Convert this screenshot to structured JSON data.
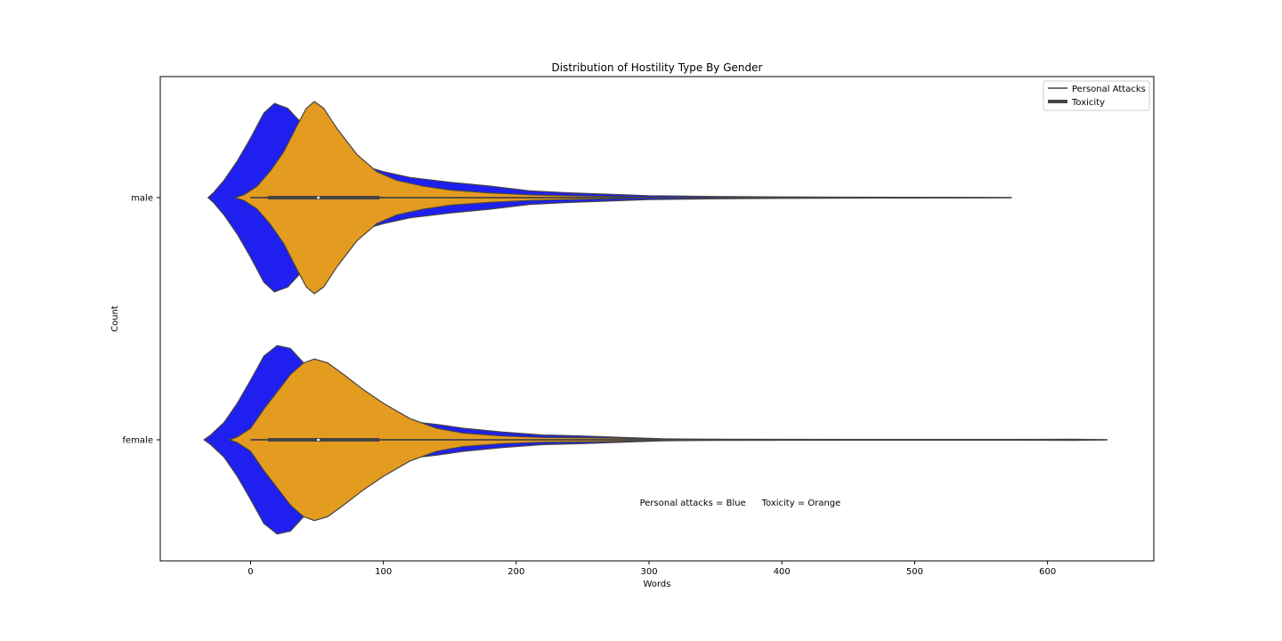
{
  "chart_data": {
    "type": "violin",
    "orientation": "horizontal",
    "title": "Distribution of Hostility Type By Gender",
    "xlabel": "Words",
    "ylabel": "Count",
    "categories": [
      "male",
      "female"
    ],
    "xlim": [
      -68,
      680
    ],
    "xticks": [
      0,
      100,
      200,
      300,
      400,
      500,
      600
    ],
    "legend": {
      "position": "top-right",
      "entries": [
        {
          "label": "Personal Attacks",
          "color": "#444444",
          "style": "thin"
        },
        {
          "label": "Toxicity",
          "color": "#444444",
          "style": "thick"
        }
      ]
    },
    "annotation": {
      "left": "Personal attacks = Blue",
      "right": "Toxicity = Orange",
      "x": 293,
      "y_category": "female",
      "y_offset": 0.58
    },
    "series": [
      {
        "name": "Personal attacks",
        "color": "#1f1ff0",
        "violins": [
          {
            "category": "male",
            "min": 0,
            "q1": 13,
            "median": 42,
            "q3": 97,
            "max": 573,
            "density": [
              [
                -32,
                0
              ],
              [
                -28,
                0.05
              ],
              [
                -20,
                0.18
              ],
              [
                -10,
                0.38
              ],
              [
                0,
                0.62
              ],
              [
                10,
                0.88
              ],
              [
                18,
                0.98
              ],
              [
                28,
                0.93
              ],
              [
                40,
                0.75
              ],
              [
                55,
                0.47
              ],
              [
                70,
                0.36
              ],
              [
                85,
                0.33
              ],
              [
                100,
                0.27
              ],
              [
                120,
                0.21
              ],
              [
                150,
                0.16
              ],
              [
                180,
                0.12
              ],
              [
                210,
                0.07
              ],
              [
                240,
                0.05
              ],
              [
                270,
                0.035
              ],
              [
                300,
                0.02
              ],
              [
                350,
                0.012
              ],
              [
                400,
                0.007
              ],
              [
                450,
                0.005
              ],
              [
                500,
                0.004
              ],
              [
                540,
                0.003
              ],
              [
                573,
                0
              ]
            ]
          },
          {
            "category": "female",
            "min": 0,
            "q1": 13,
            "median": 43,
            "q3": 97,
            "max": 645,
            "density": [
              [
                -35,
                0
              ],
              [
                -30,
                0.05
              ],
              [
                -20,
                0.18
              ],
              [
                -10,
                0.38
              ],
              [
                0,
                0.62
              ],
              [
                10,
                0.87
              ],
              [
                20,
                0.98
              ],
              [
                30,
                0.95
              ],
              [
                40,
                0.8
              ],
              [
                55,
                0.52
              ],
              [
                75,
                0.33
              ],
              [
                100,
                0.24
              ],
              [
                120,
                0.19
              ],
              [
                140,
                0.16
              ],
              [
                160,
                0.12
              ],
              [
                190,
                0.08
              ],
              [
                220,
                0.05
              ],
              [
                250,
                0.04
              ],
              [
                280,
                0.025
              ],
              [
                310,
                0.01
              ],
              [
                350,
                0.006
              ],
              [
                400,
                0.005
              ],
              [
                450,
                0.004
              ],
              [
                500,
                0.004
              ],
              [
                550,
                0.004
              ],
              [
                600,
                0.005
              ],
              [
                620,
                0.006
              ],
              [
                645,
                0
              ]
            ]
          }
        ]
      },
      {
        "name": "Toxicity",
        "color": "#e39b20",
        "violins": [
          {
            "category": "male",
            "min": 0,
            "q1": 38,
            "median": 51,
            "q3": 70,
            "max": 300,
            "density": [
              [
                -12,
                0
              ],
              [
                -5,
                0.03
              ],
              [
                5,
                0.12
              ],
              [
                15,
                0.28
              ],
              [
                25,
                0.48
              ],
              [
                35,
                0.75
              ],
              [
                42,
                0.93
              ],
              [
                48,
                1.0
              ],
              [
                55,
                0.93
              ],
              [
                65,
                0.72
              ],
              [
                80,
                0.45
              ],
              [
                95,
                0.27
              ],
              [
                110,
                0.18
              ],
              [
                130,
                0.12
              ],
              [
                150,
                0.08
              ],
              [
                180,
                0.05
              ],
              [
                210,
                0.03
              ],
              [
                240,
                0.02
              ],
              [
                270,
                0.012
              ],
              [
                300,
                0
              ]
            ]
          },
          {
            "category": "female",
            "min": 0,
            "q1": 33,
            "median": 51,
            "q3": 70,
            "max": 340,
            "density": [
              [
                -16,
                0
              ],
              [
                -10,
                0.03
              ],
              [
                0,
                0.12
              ],
              [
                10,
                0.32
              ],
              [
                20,
                0.5
              ],
              [
                30,
                0.68
              ],
              [
                40,
                0.8
              ],
              [
                48,
                0.84
              ],
              [
                58,
                0.8
              ],
              [
                70,
                0.68
              ],
              [
                85,
                0.52
              ],
              [
                100,
                0.38
              ],
              [
                120,
                0.22
              ],
              [
                140,
                0.12
              ],
              [
                160,
                0.07
              ],
              [
                190,
                0.04
              ],
              [
                220,
                0.025
              ],
              [
                260,
                0.02
              ],
              [
                300,
                0.01
              ],
              [
                340,
                0
              ]
            ]
          }
        ]
      }
    ]
  }
}
